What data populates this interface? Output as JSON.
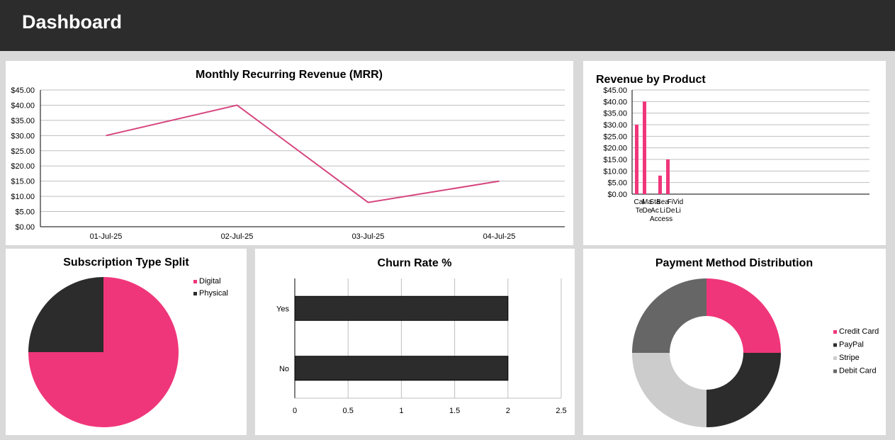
{
  "header": {
    "title": "Dashboard"
  },
  "colors": {
    "accent_line": "#d6457e",
    "pink": "#f0367a",
    "dark": "#2c2c2c",
    "light_gray": "#cccccc",
    "mid_gray": "#666666",
    "grid": "#bfbfbf"
  },
  "chart_data": [
    {
      "id": "mrr",
      "type": "line",
      "title": "Monthly Recurring Revenue (MRR)",
      "categories": [
        "01-Jul-25",
        "02-Jul-25",
        "03-Jul-25",
        "04-Jul-25"
      ],
      "values": [
        30,
        40,
        8,
        15
      ],
      "ylim": [
        0,
        45
      ],
      "yticks": [
        "$0.00",
        "$5.00",
        "$10.00",
        "$15.00",
        "$20.00",
        "$25.00",
        "$30.00",
        "$35.00",
        "$40.00",
        "$45.00"
      ],
      "grid": true
    },
    {
      "id": "product",
      "type": "bar",
      "title": "Revenue by Product",
      "category_labels": [
        "Cal",
        "Ma",
        "Sta",
        "Bea",
        "Fi",
        "Vid"
      ],
      "category_labels_lower": [
        "Te",
        "De",
        "Ac",
        "Li",
        "De",
        "Li"
      ],
      "values": [
        30,
        40,
        0,
        8,
        15,
        0
      ],
      "ylim": [
        0,
        45
      ],
      "yticks": [
        "$0.00",
        "$5.00",
        "$10.00",
        "$15.00",
        "$20.00",
        "$25.00",
        "$30.00",
        "$35.00",
        "$40.00",
        "$45.00"
      ],
      "extra_label_lines": [
        "Access"
      ],
      "grid": true
    },
    {
      "id": "subscription",
      "type": "pie",
      "title": "Subscription Type Split",
      "labels": [
        "Digital",
        "Physical"
      ],
      "values": [
        75,
        25
      ],
      "legend": "top-right"
    },
    {
      "id": "churn",
      "type": "bar",
      "orientation": "horizontal",
      "title": "Churn Rate %",
      "categories": [
        "Yes",
        "No"
      ],
      "values": [
        2,
        2
      ],
      "xlim": [
        0,
        2.5
      ],
      "xticks": [
        "0",
        "0.5",
        "1",
        "1.5",
        "2",
        "2.5"
      ],
      "grid": true
    },
    {
      "id": "payment",
      "type": "pie",
      "variant": "donut",
      "title": "Payment Method Distribution",
      "labels": [
        "Credit Card",
        "PayPal",
        "Stripe",
        "Debit Card"
      ],
      "values": [
        1,
        1,
        1,
        1
      ],
      "legend": "right"
    }
  ]
}
